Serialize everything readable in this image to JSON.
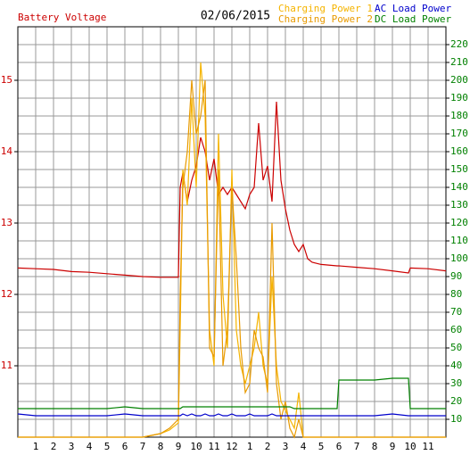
{
  "chart_data": {
    "type": "line",
    "title": "02/06/2015",
    "ylabel": "Battery Voltage",
    "ylabel_color": "#cc0000",
    "y2_color": "#008000",
    "grid": true,
    "xlim": [
      0,
      24
    ],
    "xticks": [
      1,
      2,
      3,
      4,
      5,
      6,
      7,
      8,
      9,
      10,
      11,
      12,
      {
        "value": 13,
        "label": "1"
      },
      {
        "value": 14,
        "label": "2"
      },
      {
        "value": 15,
        "label": "3"
      },
      {
        "value": 16,
        "label": "4"
      },
      {
        "value": 17,
        "label": "5"
      },
      {
        "value": 18,
        "label": "6"
      },
      {
        "value": 19,
        "label": "7"
      },
      {
        "value": 20,
        "label": "8"
      },
      {
        "value": 21,
        "label": "9"
      },
      {
        "value": 22,
        "label": "10"
      },
      {
        "value": 23,
        "label": "11"
      }
    ],
    "ylim": [
      10,
      15.75
    ],
    "yticks": [
      11,
      12,
      13,
      14,
      15
    ],
    "y2lim": [
      0,
      230
    ],
    "y2ticks": [
      10,
      20,
      30,
      40,
      50,
      60,
      70,
      80,
      90,
      100,
      110,
      120,
      130,
      140,
      150,
      160,
      170,
      180,
      190,
      200,
      210,
      220
    ],
    "x": [
      0,
      1,
      2,
      3,
      4,
      5,
      6,
      7,
      8,
      8.5,
      9,
      9.1,
      9.25,
      9.5,
      9.75,
      10,
      10.25,
      10.5,
      10.75,
      11,
      11.25,
      11.5,
      11.75,
      12,
      12.25,
      12.5,
      12.75,
      13,
      13.25,
      13.5,
      13.75,
      14,
      14.25,
      14.5,
      14.75,
      15,
      15.25,
      15.5,
      15.75,
      16,
      16.25,
      16.5,
      17,
      17.9,
      18,
      19,
      20,
      21,
      21.9,
      22,
      23,
      24
    ],
    "series": [
      {
        "name": "Battery Voltage",
        "color": "#cc0000",
        "axis": "y",
        "values": [
          12.37,
          12.36,
          12.35,
          12.32,
          12.31,
          12.29,
          12.27,
          12.25,
          12.24,
          12.24,
          12.24,
          13.5,
          13.7,
          13.3,
          13.6,
          13.8,
          14.2,
          14.0,
          13.6,
          13.9,
          13.4,
          13.5,
          13.4,
          13.5,
          13.4,
          13.3,
          13.2,
          13.4,
          13.5,
          14.4,
          13.6,
          13.8,
          13.3,
          14.7,
          13.6,
          13.2,
          12.9,
          12.7,
          12.6,
          12.7,
          12.5,
          12.45,
          12.42,
          12.4,
          12.4,
          12.38,
          12.36,
          12.33,
          12.3,
          12.37,
          12.36,
          12.33
        ]
      },
      {
        "name": "Charging Power 1",
        "color": "#f5b400",
        "axis": "y2",
        "values": [
          0,
          0,
          0,
          0,
          0,
          0,
          0,
          0,
          2,
          4,
          8,
          60,
          150,
          130,
          190,
          140,
          210,
          180,
          60,
          40,
          170,
          80,
          50,
          150,
          60,
          40,
          30,
          40,
          50,
          70,
          40,
          30,
          90,
          40,
          20,
          15,
          10,
          5,
          25,
          0,
          0,
          0,
          0,
          0,
          0,
          0,
          0,
          0,
          0,
          0,
          0,
          0
        ]
      },
      {
        "name": "Charging Power 2",
        "color": "#e89a00",
        "axis": "y2",
        "values": [
          0,
          0,
          0,
          0,
          0,
          0,
          0,
          0,
          2,
          5,
          10,
          80,
          140,
          160,
          200,
          170,
          180,
          200,
          50,
          45,
          150,
          40,
          60,
          140,
          100,
          50,
          25,
          30,
          60,
          50,
          45,
          25,
          120,
          30,
          10,
          20,
          5,
          0,
          10,
          0,
          0,
          0,
          0,
          0,
          0,
          0,
          0,
          0,
          0,
          0,
          0,
          0
        ]
      },
      {
        "name": "AC Load Power",
        "color": "#0000cc",
        "axis": "y2",
        "values": [
          13,
          12,
          12,
          12,
          12,
          12,
          13,
          12,
          12,
          12,
          12,
          12,
          13,
          12,
          13,
          12,
          12,
          13,
          12,
          12,
          13,
          12,
          12,
          13,
          12,
          12,
          12,
          13,
          12,
          12,
          12,
          12,
          13,
          12,
          12,
          12,
          12,
          12,
          12,
          12,
          12,
          12,
          12,
          12,
          12,
          12,
          12,
          13,
          12,
          12,
          12,
          12
        ]
      },
      {
        "name": "DC Load Power",
        "color": "#008000",
        "axis": "y2",
        "values": [
          16,
          16,
          16,
          16,
          16,
          16,
          17,
          16,
          16,
          16,
          16,
          16,
          17,
          17,
          17,
          17,
          17,
          17,
          17,
          17,
          17,
          17,
          17,
          17,
          17,
          17,
          17,
          17,
          17,
          17,
          17,
          17,
          17,
          17,
          17,
          17,
          17,
          16,
          16,
          16,
          16,
          16,
          16,
          16,
          32,
          32,
          32,
          33,
          33,
          16,
          16,
          16
        ]
      }
    ]
  }
}
